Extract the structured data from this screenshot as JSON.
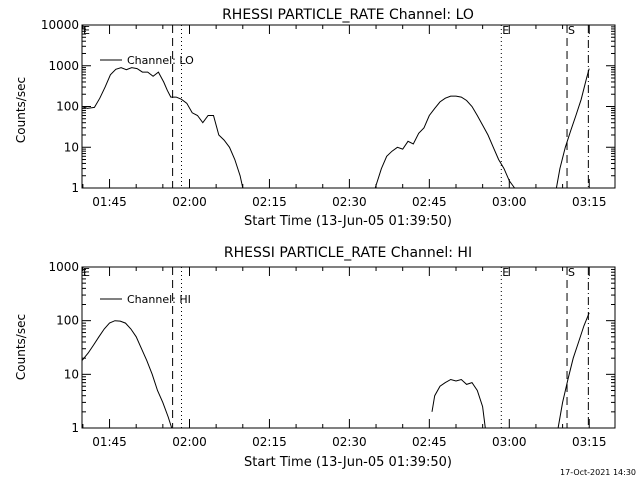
{
  "footer_date": "17-Oct-2021 14:30",
  "colors": {
    "background": "#ffffff",
    "foreground": "#000000"
  },
  "chart_data": [
    {
      "type": "line",
      "title": "RHESSI PARTICLE_RATE Channel: LO",
      "xlabel": "Start Time (13-Jun-05 01:39:50)",
      "ylabel": "Counts/sec",
      "y_scale": "log",
      "ylim": [
        1,
        10000
      ],
      "xlim": [
        "01:39:50",
        "03:19:50"
      ],
      "grid": false,
      "legend_placement": "top-left",
      "x_ticks": [
        "01:45",
        "02:00",
        "02:15",
        "02:30",
        "02:45",
        "03:00",
        "03:15"
      ],
      "y_ticks": [
        "1",
        "10",
        "100",
        "1000",
        "10000"
      ],
      "markers": [
        {
          "label": "E",
          "time": "01:39:50",
          "style": "solid"
        },
        {
          "label": "",
          "time": "01:56:50",
          "style": "dashed"
        },
        {
          "label": "",
          "time": "01:58:30",
          "style": "dotted"
        },
        {
          "label": "E",
          "time": "02:58:30",
          "style": "dotted"
        },
        {
          "label": "S",
          "time": "03:10:50",
          "style": "dashed"
        },
        {
          "label": "",
          "time": "03:14:50",
          "style": "dashdot"
        }
      ],
      "series": [
        {
          "name": "Channel: LO",
          "segments": [
            {
              "x": [
                "01:39:50",
                "01:40:50",
                "01:42:10",
                "01:43:10",
                "01:44:10",
                "01:45:10",
                "01:46:10",
                "01:47:10",
                "01:48:10",
                "01:49:10",
                "01:50:10",
                "01:51:10",
                "01:52:10",
                "01:53:10",
                "01:54:10",
                "01:55:10",
                "01:55:50",
                "01:56:30",
                "01:57:30",
                "01:58:30",
                "01:59:30",
                "02:00:30",
                "02:01:30",
                "02:02:30",
                "02:03:30",
                "02:04:30",
                "02:05:30",
                "02:06:30",
                "02:07:30",
                "02:08:30",
                "02:09:30",
                "02:10:00"
              ],
              "y": [
                100,
                90,
                95,
                160,
                300,
                600,
                820,
                900,
                800,
                900,
                850,
                700,
                700,
                550,
                700,
                400,
                250,
                170,
                170,
                150,
                120,
                70,
                60,
                40,
                60,
                60,
                20,
                15,
                10,
                5,
                2,
                1
              ]
            },
            {
              "x": [
                "02:34:50",
                "02:36:00",
                "02:37:00",
                "02:38:00",
                "02:39:00",
                "02:40:00",
                "02:41:00",
                "02:42:00",
                "02:43:00",
                "02:44:00",
                "02:45:00",
                "02:46:00",
                "02:47:00",
                "02:48:00",
                "02:49:00",
                "02:50:00",
                "02:51:00",
                "02:52:00",
                "02:53:00",
                "02:54:00",
                "02:55:00",
                "02:56:00",
                "02:57:00",
                "02:58:00",
                "02:59:00",
                "03:00:00",
                "03:01:00"
              ],
              "y": [
                1,
                3,
                6,
                8,
                10,
                9,
                14,
                12,
                22,
                30,
                60,
                90,
                130,
                160,
                180,
                180,
                170,
                140,
                100,
                60,
                35,
                20,
                10,
                5,
                3,
                1.5,
                1
              ]
            },
            {
              "x": [
                "03:08:50",
                "03:09:30",
                "03:10:30",
                "03:11:30",
                "03:12:30",
                "03:13:30",
                "03:14:30",
                "03:15:00"
              ],
              "y": [
                1,
                3,
                10,
                25,
                60,
                150,
                500,
                850
              ]
            }
          ]
        }
      ]
    },
    {
      "type": "line",
      "title": "RHESSI PARTICLE_RATE Channel: HI",
      "xlabel": "Start Time (13-Jun-05 01:39:50)",
      "ylabel": "Counts/sec",
      "y_scale": "log",
      "ylim": [
        1,
        1000
      ],
      "xlim": [
        "01:39:50",
        "03:19:50"
      ],
      "grid": false,
      "legend_placement": "top-left",
      "x_ticks": [
        "01:45",
        "02:00",
        "02:15",
        "02:30",
        "02:45",
        "03:00",
        "03:15"
      ],
      "y_ticks": [
        "1",
        "10",
        "100",
        "1000"
      ],
      "markers": [
        {
          "label": "E",
          "time": "01:39:50",
          "style": "solid"
        },
        {
          "label": "",
          "time": "01:56:50",
          "style": "dashed"
        },
        {
          "label": "",
          "time": "01:58:30",
          "style": "dotted"
        },
        {
          "label": "E",
          "time": "02:58:30",
          "style": "dotted"
        },
        {
          "label": "S",
          "time": "03:10:50",
          "style": "dashed"
        },
        {
          "label": "",
          "time": "03:14:50",
          "style": "dashdot"
        }
      ],
      "series": [
        {
          "name": "Channel: HI",
          "segments": [
            {
              "x": [
                "01:39:50",
                "01:41:00",
                "01:42:00",
                "01:43:00",
                "01:44:00",
                "01:45:00",
                "01:46:00",
                "01:47:00",
                "01:48:00",
                "01:49:00",
                "01:50:00",
                "01:51:00",
                "01:52:00",
                "01:53:00",
                "01:54:00",
                "01:55:00",
                "01:56:00",
                "01:56:40"
              ],
              "y": [
                18,
                25,
                35,
                50,
                70,
                90,
                100,
                98,
                90,
                70,
                50,
                30,
                18,
                10,
                5,
                3,
                1.6,
                1
              ]
            },
            {
              "x": [
                "02:45:30",
                "02:46:00",
                "02:47:00",
                "02:48:00",
                "02:49:00",
                "02:50:00",
                "02:51:00",
                "02:52:00",
                "02:53:00",
                "02:54:00",
                "02:55:00",
                "02:55:30"
              ],
              "y": [
                2,
                4,
                6,
                7,
                8,
                7.5,
                8,
                6.5,
                7,
                5,
                2.5,
                1
              ]
            },
            {
              "x": [
                "03:09:10",
                "03:10:00",
                "03:11:00",
                "03:12:00",
                "03:13:00",
                "03:14:00",
                "03:15:00"
              ],
              "y": [
                1,
                3,
                8,
                20,
                40,
                80,
                140
              ]
            }
          ]
        }
      ]
    }
  ]
}
